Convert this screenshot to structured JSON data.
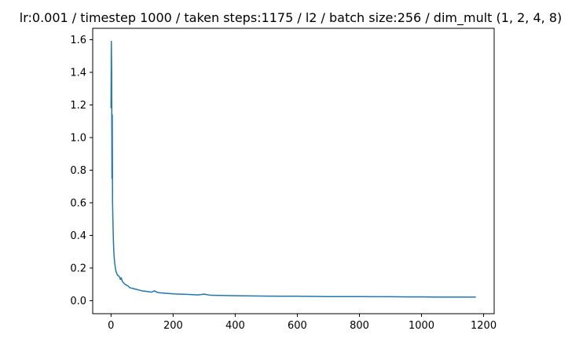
{
  "chart_data": {
    "type": "line",
    "title": "lr:0.001 / timestep 1000 / taken steps:1175 / l2 / batch size:256 / dim_mult (1, 2, 4, 8)",
    "xlabel": "",
    "ylabel": "",
    "xlim": [
      -59,
      1234
    ],
    "ylim": [
      -0.08,
      1.67
    ],
    "grid": false,
    "line_color": "#1f77b4",
    "x_ticks": [
      0,
      200,
      400,
      600,
      800,
      1000,
      1200
    ],
    "x_tick_labels": [
      "0",
      "200",
      "400",
      "600",
      "800",
      "1000",
      "1200"
    ],
    "y_ticks": [
      0.0,
      0.2,
      0.4,
      0.6,
      0.8,
      1.0,
      1.2,
      1.4,
      1.6
    ],
    "y_tick_labels": [
      "0.0",
      "0.2",
      "0.4",
      "0.6",
      "0.8",
      "1.0",
      "1.2",
      "1.4",
      "1.6"
    ],
    "series": [
      {
        "x": [
          0,
          1,
          2,
          3,
          4,
          5,
          6,
          7,
          8,
          9,
          10,
          12,
          14,
          16,
          18,
          20,
          22,
          25,
          28,
          30,
          33,
          36,
          40,
          45,
          50,
          55,
          60,
          70,
          80,
          90,
          100,
          110,
          120,
          130,
          140,
          150,
          160,
          180,
          200,
          220,
          250,
          280,
          300,
          320,
          350,
          400,
          450,
          500,
          550,
          600,
          650,
          700,
          750,
          800,
          850,
          900,
          950,
          1000,
          1050,
          1100,
          1150,
          1175
        ],
        "y": [
          1.18,
          1.59,
          1.4,
          0.75,
          1.14,
          0.6,
          0.5,
          0.42,
          0.35,
          0.3,
          0.27,
          0.23,
          0.2,
          0.18,
          0.17,
          0.16,
          0.155,
          0.15,
          0.145,
          0.13,
          0.14,
          0.12,
          0.11,
          0.1,
          0.095,
          0.09,
          0.08,
          0.075,
          0.07,
          0.065,
          0.06,
          0.058,
          0.055,
          0.052,
          0.06,
          0.05,
          0.048,
          0.045,
          0.042,
          0.04,
          0.038,
          0.035,
          0.04,
          0.033,
          0.032,
          0.03,
          0.029,
          0.028,
          0.027,
          0.027,
          0.026,
          0.025,
          0.025,
          0.025,
          0.024,
          0.024,
          0.023,
          0.023,
          0.022,
          0.022,
          0.022,
          0.022
        ]
      }
    ]
  }
}
